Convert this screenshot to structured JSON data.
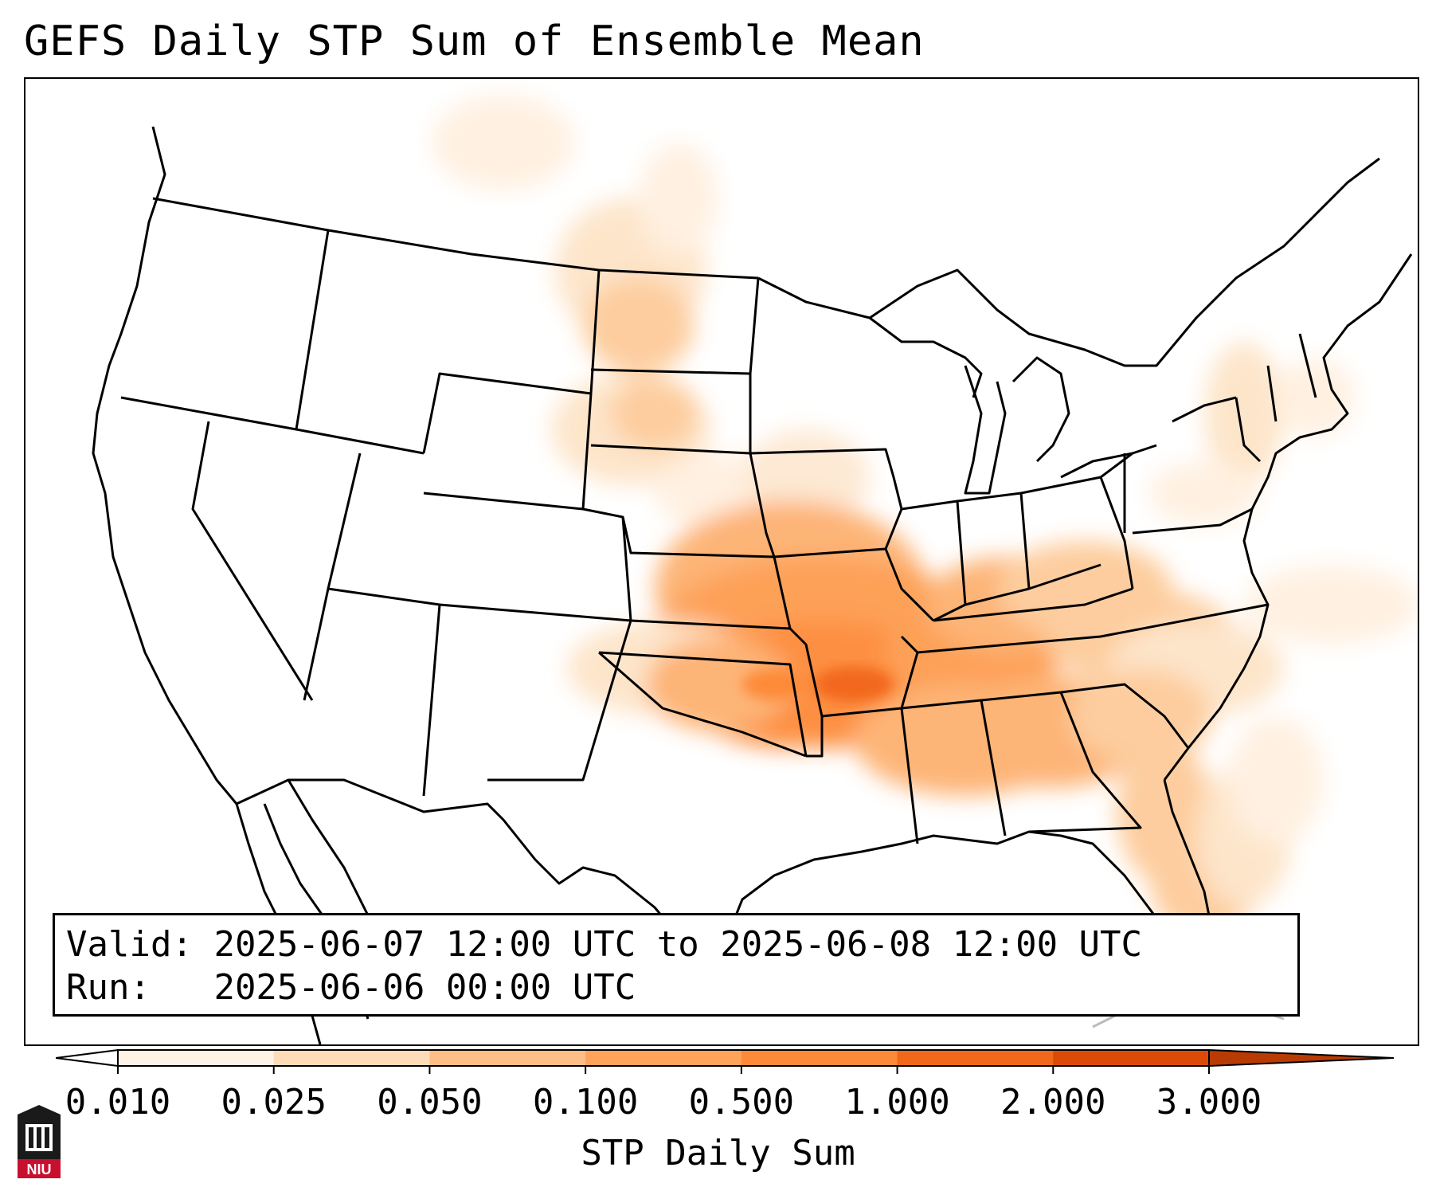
{
  "title": "GEFS Daily STP Sum of Ensemble Mean",
  "info": {
    "valid_label": "Valid:",
    "valid_value": "2025-06-07 12:00 UTC to 2025-06-08 12:00 UTC",
    "run_label": "Run:  ",
    "run_value": "2025-06-06 00:00 UTC"
  },
  "colorbar": {
    "label": "STP Daily Sum",
    "levels": [
      "0.010",
      "0.025",
      "0.050",
      "0.100",
      "0.500",
      "1.000",
      "2.000",
      "3.000"
    ],
    "colors": [
      "#fff3e6",
      "#fedcb8",
      "#fdbf86",
      "#fda35a",
      "#fd8a38",
      "#f2681a",
      "#db4a07",
      "#b93b04"
    ],
    "extend": "both"
  },
  "logo": {
    "text": "NIU",
    "icon": "university-logo"
  },
  "map": {
    "region": "Contiguous United States",
    "field": "STP daily sum",
    "max_area": "Missouri / Arkansas / Oklahoma border"
  }
}
